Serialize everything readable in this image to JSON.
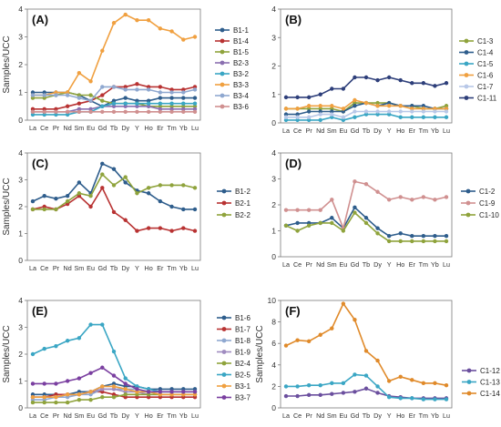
{
  "elements": [
    "La",
    "Ce",
    "Pr",
    "Nd",
    "Sm",
    "Eu",
    "Gd",
    "Tb",
    "Dy",
    "Y",
    "Ho",
    "Er",
    "Tm",
    "Yb",
    "Lu"
  ],
  "chart_data": [
    {
      "type": "line",
      "panel_label": "(A)",
      "ylabel": "Samples/UCC",
      "ylim": [
        0,
        4
      ],
      "yticks": [
        0,
        1,
        2,
        3,
        4
      ],
      "legend": "right",
      "series": [
        {
          "name": "B1-1",
          "color": "#2e5d8c",
          "marker": "circle",
          "values": [
            1.0,
            1.0,
            1.0,
            1.0,
            0.9,
            0.7,
            0.5,
            0.7,
            0.8,
            0.7,
            0.7,
            0.8,
            0.8,
            0.8,
            0.8
          ]
        },
        {
          "name": "B1-4",
          "color": "#b83232",
          "marker": "circle",
          "values": [
            0.4,
            0.4,
            0.4,
            0.5,
            0.6,
            0.7,
            0.9,
            1.2,
            1.2,
            1.3,
            1.2,
            1.2,
            1.1,
            1.1,
            1.2
          ]
        },
        {
          "name": "B1-5",
          "color": "#8fa33c",
          "marker": "circle",
          "values": [
            0.8,
            0.8,
            0.9,
            1.0,
            0.9,
            0.9,
            0.7,
            0.6,
            0.6,
            0.6,
            0.5,
            0.5,
            0.5,
            0.5,
            0.5
          ]
        },
        {
          "name": "B2-3",
          "color": "#8a6fb0",
          "marker": "circle",
          "values": [
            0.3,
            0.3,
            0.3,
            0.3,
            0.4,
            0.4,
            0.5,
            0.5,
            0.5,
            0.5,
            0.5,
            0.4,
            0.4,
            0.4,
            0.4
          ]
        },
        {
          "name": "B3-2",
          "color": "#3aa6c4",
          "marker": "circle",
          "values": [
            0.2,
            0.2,
            0.2,
            0.2,
            0.3,
            0.3,
            0.5,
            0.6,
            0.6,
            0.6,
            0.6,
            0.6,
            0.6,
            0.6,
            0.6
          ]
        },
        {
          "name": "B3-3",
          "color": "#f0a040",
          "marker": "circle",
          "values": [
            0.9,
            0.9,
            1.0,
            1.0,
            1.7,
            1.4,
            2.5,
            3.5,
            3.8,
            3.6,
            3.6,
            3.3,
            3.2,
            2.9,
            3.0
          ]
        },
        {
          "name": "B3-4",
          "color": "#8fa8d0",
          "marker": "circle",
          "values": [
            0.9,
            0.9,
            0.9,
            0.9,
            0.8,
            0.7,
            1.2,
            1.2,
            1.1,
            1.1,
            1.1,
            1.0,
            1.0,
            1.0,
            1.1
          ]
        },
        {
          "name": "B3-6",
          "color": "#d09090",
          "marker": "circle",
          "values": [
            0.3,
            0.3,
            0.3,
            0.3,
            0.3,
            0.3,
            0.3,
            0.3,
            0.3,
            0.3,
            0.3,
            0.3,
            0.3,
            0.3,
            0.3
          ]
        }
      ]
    },
    {
      "type": "line",
      "panel_label": "(B)",
      "ylabel": "",
      "ylim": [
        0,
        4
      ],
      "yticks": [
        0,
        1,
        2,
        3,
        4
      ],
      "legend": "right",
      "series": [
        {
          "name": "C1-3",
          "color": "#8fa33c",
          "marker": "circle",
          "values": [
            0.5,
            0.5,
            0.5,
            0.5,
            0.5,
            0.4,
            0.7,
            0.7,
            0.7,
            0.7,
            0.6,
            0.6,
            0.5,
            0.5,
            0.6
          ]
        },
        {
          "name": "C1-4",
          "color": "#2e5d8c",
          "marker": "circle",
          "values": [
            0.3,
            0.3,
            0.4,
            0.4,
            0.4,
            0.4,
            0.6,
            0.7,
            0.6,
            0.7,
            0.6,
            0.6,
            0.6,
            0.5,
            0.5
          ]
        },
        {
          "name": "C1-5",
          "color": "#3aa6c4",
          "marker": "circle",
          "values": [
            0.1,
            0.1,
            0.1,
            0.1,
            0.2,
            0.1,
            0.2,
            0.3,
            0.3,
            0.3,
            0.2,
            0.2,
            0.2,
            0.2,
            0.2
          ]
        },
        {
          "name": "C1-6",
          "color": "#f0a040",
          "marker": "circle",
          "values": [
            0.5,
            0.5,
            0.6,
            0.6,
            0.6,
            0.5,
            0.8,
            0.7,
            0.6,
            0.6,
            0.6,
            0.5,
            0.5,
            0.5,
            0.5
          ]
        },
        {
          "name": "C1-7",
          "color": "#b8c8e8",
          "marker": "circle",
          "values": [
            0.2,
            0.2,
            0.2,
            0.3,
            0.3,
            0.2,
            0.4,
            0.4,
            0.4,
            0.4,
            0.4,
            0.4,
            0.4,
            0.4,
            0.4
          ]
        },
        {
          "name": "C1-11",
          "color": "#2e3f7a",
          "marker": "circle",
          "values": [
            0.9,
            0.9,
            0.9,
            1.0,
            1.2,
            1.2,
            1.6,
            1.6,
            1.5,
            1.6,
            1.5,
            1.4,
            1.4,
            1.3,
            1.4
          ]
        }
      ]
    },
    {
      "type": "line",
      "panel_label": "(C)",
      "ylabel": "Samples/UCC",
      "ylim": [
        0,
        4
      ],
      "yticks": [
        0,
        1,
        2,
        3,
        4
      ],
      "legend": "right",
      "series": [
        {
          "name": "B1-2",
          "color": "#2e5d8c",
          "marker": "circle",
          "values": [
            2.2,
            2.4,
            2.3,
            2.4,
            2.9,
            2.5,
            3.6,
            3.4,
            2.9,
            2.6,
            2.5,
            2.2,
            2.0,
            1.9,
            1.9
          ]
        },
        {
          "name": "B2-1",
          "color": "#b83232",
          "marker": "circle",
          "values": [
            1.9,
            2.0,
            1.9,
            2.1,
            2.4,
            2.0,
            2.7,
            1.8,
            1.5,
            1.1,
            1.2,
            1.2,
            1.1,
            1.2,
            1.1
          ]
        },
        {
          "name": "B2-2",
          "color": "#8fa33c",
          "marker": "circle",
          "values": [
            1.9,
            1.9,
            1.9,
            2.2,
            2.5,
            2.4,
            3.2,
            2.8,
            3.1,
            2.5,
            2.7,
            2.8,
            2.8,
            2.8,
            2.7
          ]
        }
      ]
    },
    {
      "type": "line",
      "panel_label": "(D)",
      "ylabel": "",
      "ylim": [
        0,
        4
      ],
      "yticks": [
        0,
        1,
        2,
        3,
        4
      ],
      "legend": "right",
      "series": [
        {
          "name": "C1-2",
          "color": "#2e5d8c",
          "marker": "circle",
          "values": [
            1.2,
            1.3,
            1.3,
            1.3,
            1.5,
            1.1,
            1.9,
            1.5,
            1.1,
            0.8,
            0.9,
            0.8,
            0.8,
            0.8,
            0.8
          ]
        },
        {
          "name": "C1-9",
          "color": "#d09090",
          "marker": "circle",
          "values": [
            1.8,
            1.8,
            1.8,
            1.8,
            2.2,
            1.1,
            2.9,
            2.8,
            2.5,
            2.2,
            2.3,
            2.2,
            2.3,
            2.2,
            2.3
          ]
        },
        {
          "name": "C1-10",
          "color": "#8fa33c",
          "marker": "circle",
          "values": [
            1.2,
            1.0,
            1.2,
            1.3,
            1.3,
            1.0,
            1.7,
            1.3,
            0.9,
            0.6,
            0.6,
            0.6,
            0.6,
            0.6,
            0.6
          ]
        }
      ]
    },
    {
      "type": "line",
      "panel_label": "(E)",
      "ylabel": "Samples/UCC",
      "ylim": [
        0,
        4
      ],
      "yticks": [
        0,
        1,
        2,
        3,
        4
      ],
      "legend": "right",
      "series": [
        {
          "name": "B1-6",
          "color": "#2e5d8c",
          "marker": "circle",
          "values": [
            0.5,
            0.5,
            0.5,
            0.5,
            0.6,
            0.6,
            0.8,
            0.9,
            0.8,
            0.8,
            0.7,
            0.7,
            0.7,
            0.7,
            0.7
          ]
        },
        {
          "name": "B1-7",
          "color": "#b83232",
          "marker": "circle",
          "values": [
            0.4,
            0.4,
            0.5,
            0.5,
            0.5,
            0.6,
            0.6,
            0.5,
            0.4,
            0.4,
            0.4,
            0.4,
            0.4,
            0.4,
            0.4
          ]
        },
        {
          "name": "B1-8",
          "color": "#8fa8d0",
          "marker": "circle",
          "values": [
            0.3,
            0.3,
            0.4,
            0.4,
            0.5,
            0.5,
            0.7,
            0.7,
            0.7,
            0.7,
            0.6,
            0.6,
            0.6,
            0.6,
            0.6
          ]
        },
        {
          "name": "B1-9",
          "color": "#a08cc0",
          "marker": "circle",
          "values": [
            0.4,
            0.4,
            0.4,
            0.5,
            0.5,
            0.6,
            0.7,
            0.7,
            0.6,
            0.6,
            0.5,
            0.5,
            0.5,
            0.5,
            0.5
          ]
        },
        {
          "name": "B2-4",
          "color": "#8fa33c",
          "marker": "circle",
          "values": [
            0.2,
            0.2,
            0.2,
            0.2,
            0.3,
            0.3,
            0.4,
            0.4,
            0.5,
            0.5,
            0.5,
            0.5,
            0.5,
            0.5,
            0.5
          ]
        },
        {
          "name": "B2-5",
          "color": "#3aa6c4",
          "marker": "circle",
          "values": [
            2.0,
            2.2,
            2.3,
            2.5,
            2.6,
            3.1,
            3.1,
            2.1,
            1.1,
            0.8,
            0.7,
            0.6,
            0.6,
            0.6,
            0.6
          ]
        },
        {
          "name": "B3-1",
          "color": "#f0a040",
          "marker": "circle",
          "values": [
            0.4,
            0.4,
            0.4,
            0.5,
            0.5,
            0.6,
            0.8,
            0.8,
            0.7,
            0.6,
            0.6,
            0.5,
            0.5,
            0.5,
            0.5
          ]
        },
        {
          "name": "B3-7",
          "color": "#7a3fa0",
          "marker": "circle",
          "values": [
            0.9,
            0.9,
            0.9,
            1.0,
            1.1,
            1.3,
            1.5,
            1.2,
            0.9,
            0.7,
            0.6,
            0.6,
            0.6,
            0.6,
            0.6
          ]
        }
      ]
    },
    {
      "type": "line",
      "panel_label": "(F)",
      "ylabel": "Samples/UCC",
      "ylim": [
        0,
        10
      ],
      "yticks": [
        0,
        2,
        4,
        6,
        8,
        10
      ],
      "legend": "right",
      "series": [
        {
          "name": "C1-12",
          "color": "#6b4f9e",
          "marker": "circle",
          "values": [
            1.1,
            1.1,
            1.2,
            1.2,
            1.3,
            1.4,
            1.5,
            1.8,
            1.4,
            1.1,
            1.0,
            0.9,
            0.9,
            0.9,
            0.9
          ]
        },
        {
          "name": "C1-13",
          "color": "#3aa6c4",
          "marker": "circle",
          "values": [
            2.0,
            2.0,
            2.1,
            2.1,
            2.3,
            2.3,
            3.1,
            3.0,
            2.0,
            1.0,
            0.9,
            0.9,
            0.8,
            0.8,
            0.8
          ]
        },
        {
          "name": "C1-14",
          "color": "#e08a2a",
          "marker": "circle",
          "values": [
            5.8,
            6.3,
            6.2,
            6.8,
            7.4,
            9.7,
            8.2,
            5.3,
            4.4,
            2.5,
            2.9,
            2.6,
            2.3,
            2.3,
            2.1
          ]
        }
      ]
    }
  ]
}
